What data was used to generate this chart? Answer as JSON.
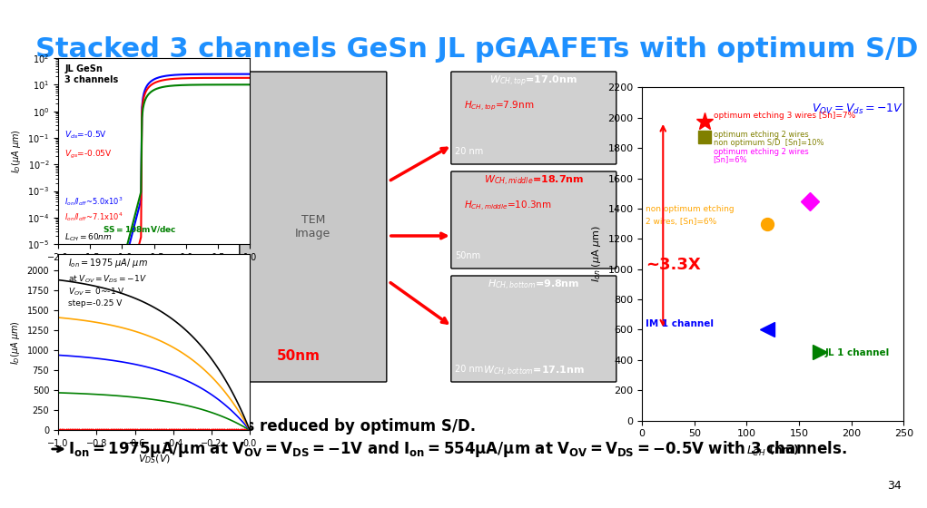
{
  "title": "Stacked 3 channels GeSn JL pGAAFETs with optimum S/D",
  "title_color": "#1e90ff",
  "title_fontsize": 22,
  "bg_color": "#ffffff",
  "bullet1": "Parasitic resistance is reduced by optimum S/D.",
  "bullet2_parts": [
    {
      "text": " I",
      "style": "bold",
      "color": "black"
    },
    {
      "text": "on",
      "style": "subscript",
      "color": "black"
    },
    {
      "text": "=1975μA/μm at V",
      "style": "bold",
      "color": "black"
    },
    {
      "text": "OV",
      "style": "subscript",
      "color": "black"
    },
    {
      "text": "=V",
      "style": "bold",
      "color": "black"
    },
    {
      "text": "DS",
      "style": "subscript",
      "color": "black"
    },
    {
      "text": "=-1V and I",
      "style": "bold",
      "color": "black"
    },
    {
      "text": "on",
      "style": "subscript",
      "color": "black"
    },
    {
      "text": "=554μA/μm at V",
      "style": "bold",
      "color": "black"
    },
    {
      "text": "OV",
      "style": "subscript",
      "color": "black"
    },
    {
      "text": "=V",
      "style": "bold",
      "color": "black"
    },
    {
      "text": "DS",
      "style": "subscript",
      "color": "black"
    },
    {
      "text": "=-0.5V with 3 channels.",
      "style": "bold",
      "color": "black"
    }
  ],
  "slide_number": "34",
  "vov_vds_label": "Vₒᵥ=V④ₓ=-1V",
  "annotation_3x": "~3.3X",
  "annotation_im1": "IM 1 channel",
  "annotation_jl1": "JL 1 channel",
  "wch_top": "Wᴄʜ,ᴛᴏᴘ=17.0nm",
  "hch_top": "Hᴄʜ,ᴛᴏᴘ=7.9nm",
  "wch_middle": "Wᴄʜ,ᴍɪᴅᴅʟᴇ=18.7nm",
  "hch_middle": "Hᴄʜ,ᴍɪᴅᴅʟᴇ=10.3nm",
  "hch_bottom": "Hᴄʜ,ʙᴏᴛᴛᴏᴍ=9.8nm",
  "wch_bottom": "Wᴄʜ,ʙᴏᴛᴛᴏᴍ=17.1nm",
  "ion_label": "Iₒₙ=1975 μA/ μm",
  "conditions": "at Vₒᵥ=V④ₓ=-1V\nVₒᵥ= 0~-1 V\nstep=-0.25 V",
  "ss_label": "SS=108mV/dec",
  "lch_label": "Lᴄʜ=60nm",
  "ion_ioff1": "Iₒₙ/Iₒᶠᶠ~5.0x10³",
  "ion_ioff2": "Iₒₙ/Iₒᶠᶠ~7.1x10⁴",
  "channel_label": "JL GeSn\n3 channels"
}
